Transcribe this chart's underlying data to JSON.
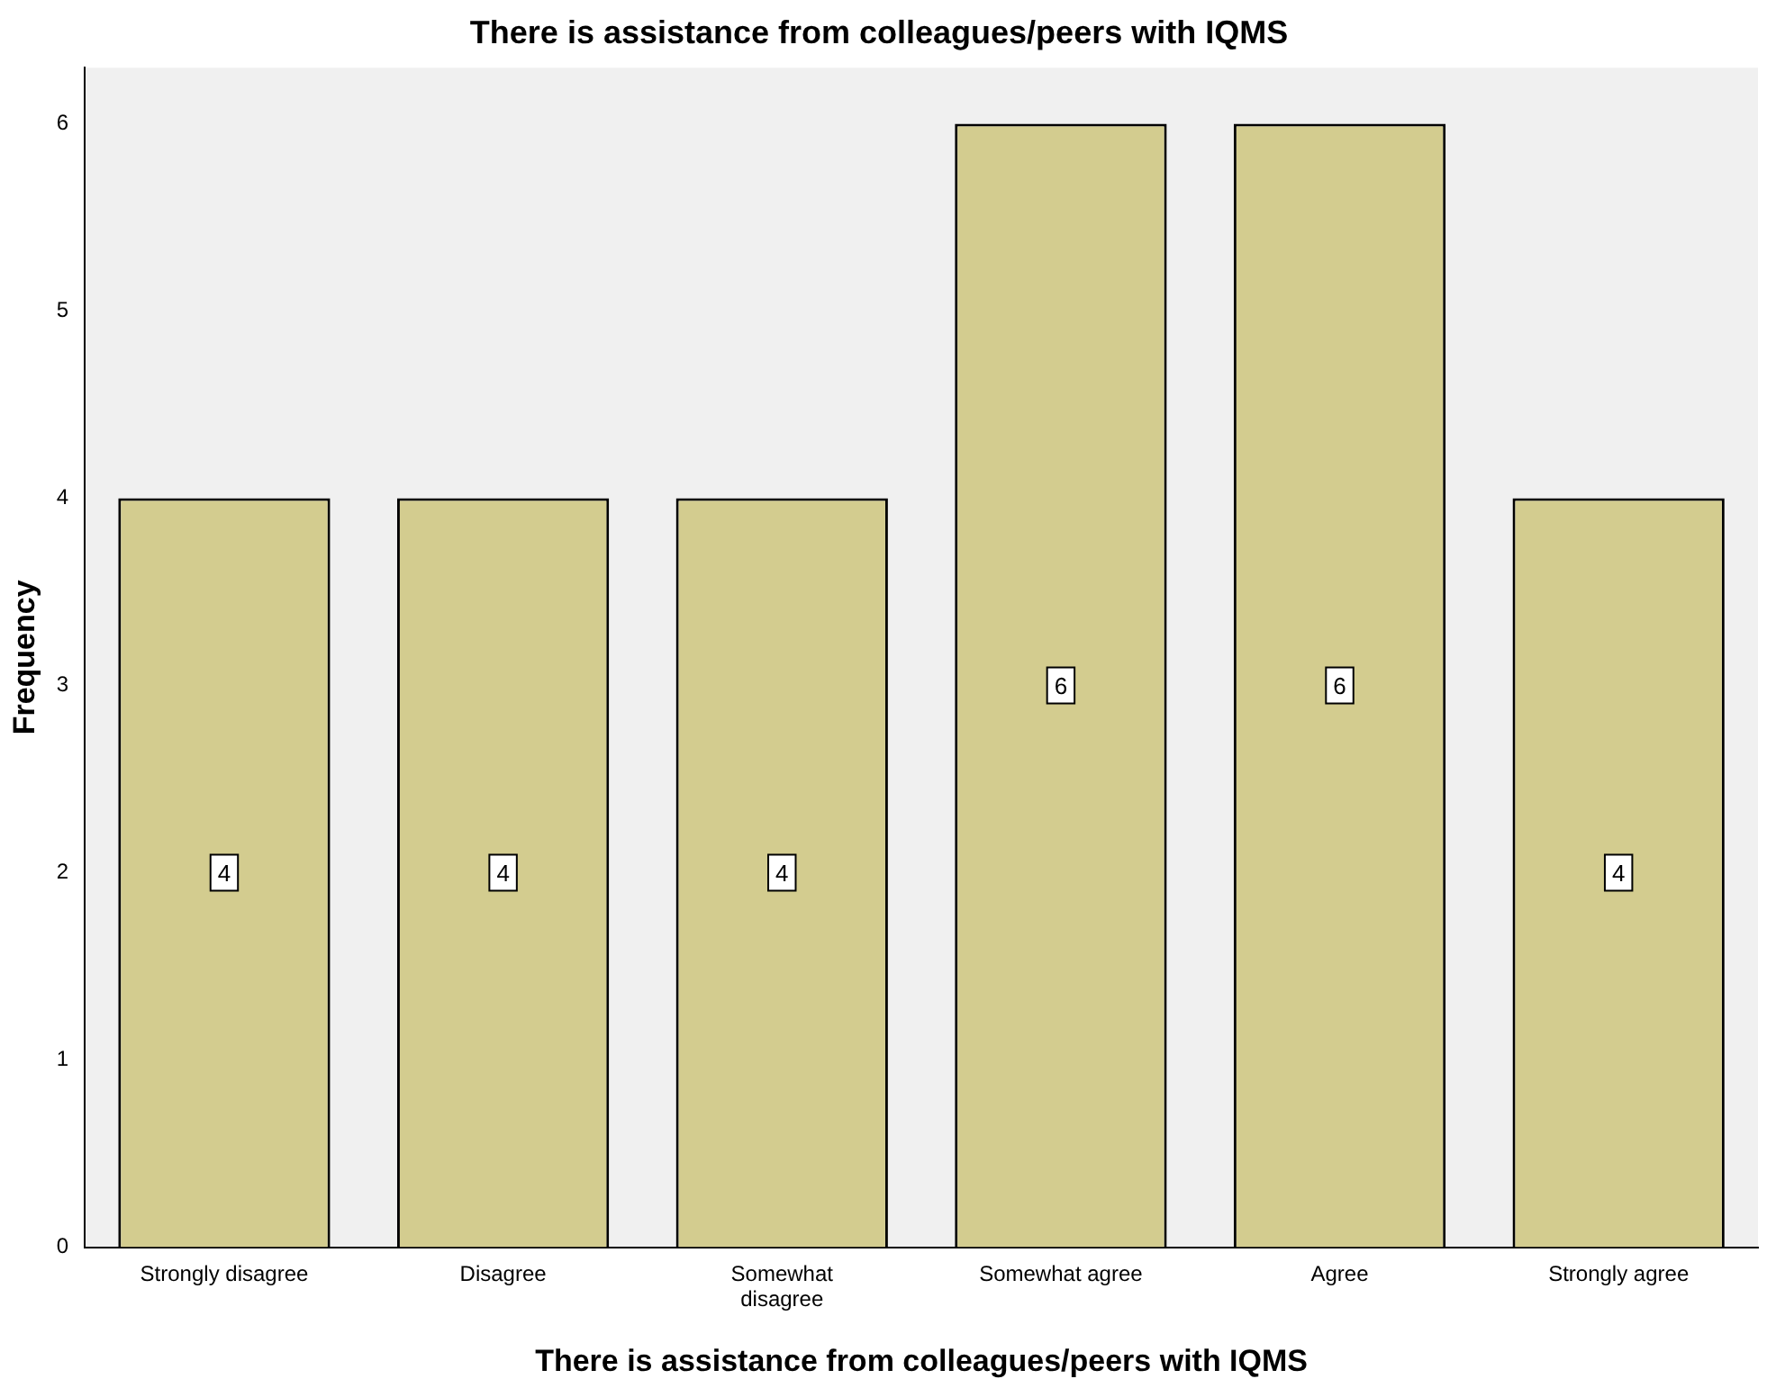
{
  "chart_data": {
    "type": "bar",
    "title": "There is assistance from colleagues/peers with IQMS",
    "xlabel": "There is assistance from colleagues/peers with IQMS",
    "ylabel": "Frequency",
    "categories": [
      "Strongly disagree",
      "Disagree",
      "Somewhat disagree",
      "Somewhat agree",
      "Agree",
      "Strongly agree"
    ],
    "values": [
      4,
      4,
      4,
      6,
      6,
      4
    ],
    "color": "#d3cc8f",
    "ylim": [
      0,
      6.3
    ],
    "yticks": [
      0,
      1,
      2,
      3,
      4,
      5,
      6
    ],
    "grid": false,
    "legend": false,
    "data_labels": true
  }
}
